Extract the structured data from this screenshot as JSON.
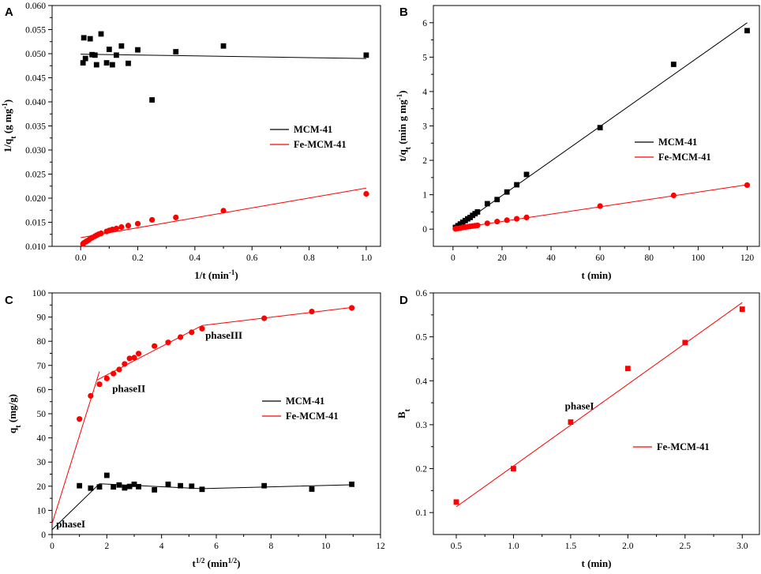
{
  "chart_data": [
    {
      "panel": "A",
      "type": "scatter",
      "xlabel": "1/t (min",
      "xlabel_sup": "-1",
      "xlabel_end": ")",
      "ylabel": "1/q",
      "ylabel_sub": "t",
      "ylabel_unit": " (g mg",
      "ylabel_sup": "-1",
      "ylabel_end": ")",
      "xlim": [
        -0.1,
        1.05
      ],
      "ylim": [
        0.01,
        0.06
      ],
      "xticks": [
        0.0,
        0.2,
        0.4,
        0.6,
        0.8,
        1.0
      ],
      "xtick_labels": [
        "0.0",
        "0.2",
        "0.4",
        "0.6",
        "0.8",
        "1.0"
      ],
      "yticks": [
        0.01,
        0.015,
        0.02,
        0.025,
        0.03,
        0.035,
        0.04,
        0.045,
        0.05,
        0.055,
        0.06
      ],
      "ytick_labels": [
        "0.010",
        "0.015",
        "0.020",
        "0.025",
        "0.030",
        "0.035",
        "0.040",
        "0.045",
        "0.050",
        "0.055",
        "0.060"
      ],
      "legend_position": "right-middle",
      "series": [
        {
          "name": "MCM-41",
          "color": "#000000",
          "marker": "square",
          "points": [
            [
              0.0083,
              0.0481
            ],
            [
              0.0111,
              0.0533
            ],
            [
              0.0167,
              0.049
            ],
            [
              0.0333,
              0.0531
            ],
            [
              0.04,
              0.0498
            ],
            [
              0.05,
              0.0497
            ],
            [
              0.0556,
              0.0477
            ],
            [
              0.0714,
              0.0541
            ],
            [
              0.0909,
              0.0481
            ],
            [
              0.1,
              0.0509
            ],
            [
              0.1111,
              0.0477
            ],
            [
              0.125,
              0.0497
            ],
            [
              0.1429,
              0.0516
            ],
            [
              0.1667,
              0.048
            ],
            [
              0.2,
              0.0508
            ],
            [
              0.25,
              0.0404
            ],
            [
              0.3333,
              0.0504
            ],
            [
              0.5,
              0.0516
            ],
            [
              1.0,
              0.0497
            ]
          ],
          "fit": [
            [
              0.0,
              0.0499
            ],
            [
              1.0,
              0.049
            ]
          ]
        },
        {
          "name": "Fe-MCM-41",
          "color": "#ff0000",
          "marker": "circle",
          "points": [
            [
              0.0083,
              0.0105
            ],
            [
              0.0111,
              0.0107
            ],
            [
              0.0167,
              0.0109
            ],
            [
              0.0222,
              0.0111
            ],
            [
              0.0278,
              0.0113
            ],
            [
              0.0333,
              0.0116
            ],
            [
              0.04,
              0.0118
            ],
            [
              0.05,
              0.0121
            ],
            [
              0.0556,
              0.0123
            ],
            [
              0.0625,
              0.0125
            ],
            [
              0.0714,
              0.0127
            ],
            [
              0.0909,
              0.0131
            ],
            [
              0.1,
              0.0133
            ],
            [
              0.1111,
              0.0135
            ],
            [
              0.125,
              0.0137
            ],
            [
              0.1429,
              0.014
            ],
            [
              0.1667,
              0.0143
            ],
            [
              0.2,
              0.0147
            ],
            [
              0.25,
              0.0155
            ],
            [
              0.3333,
              0.016
            ],
            [
              0.5,
              0.0174
            ],
            [
              1.0,
              0.0209
            ]
          ],
          "fit": [
            [
              0.0,
              0.0118
            ],
            [
              1.0,
              0.0221
            ]
          ]
        }
      ]
    },
    {
      "panel": "B",
      "type": "scatter",
      "xlabel": "t (min)",
      "ylabel": "t/q",
      "ylabel_sub": "t",
      "ylabel_unit": " (min g mg",
      "ylabel_sup": "-1",
      "ylabel_end": ")",
      "xlim": [
        -8,
        125
      ],
      "ylim": [
        -0.5,
        6.5
      ],
      "xticks": [
        0,
        20,
        40,
        60,
        80,
        100,
        120
      ],
      "xtick_labels": [
        "0",
        "20",
        "40",
        "60",
        "80",
        "100",
        "120"
      ],
      "yticks": [
        0,
        1,
        2,
        3,
        4,
        5,
        6
      ],
      "ytick_labels": [
        "0",
        "1",
        "2",
        "3",
        "4",
        "5",
        "6"
      ],
      "legend_position": "right-middle",
      "series": [
        {
          "name": "MCM-41",
          "color": "#000000",
          "marker": "square",
          "points": [
            [
              1,
              0.05
            ],
            [
              2,
              0.1
            ],
            [
              3,
              0.15
            ],
            [
              4,
              0.2
            ],
            [
              5,
              0.25
            ],
            [
              6,
              0.3
            ],
            [
              7,
              0.34
            ],
            [
              8,
              0.4
            ],
            [
              9,
              0.45
            ],
            [
              10,
              0.5
            ],
            [
              14,
              0.74
            ],
            [
              18,
              0.86
            ],
            [
              22,
              1.08
            ],
            [
              26,
              1.29
            ],
            [
              30,
              1.59
            ],
            [
              60,
              2.95
            ],
            [
              90,
              4.79
            ],
            [
              120,
              5.77
            ]
          ],
          "fit": [
            [
              1,
              0.02
            ],
            [
              120,
              6.0
            ]
          ]
        },
        {
          "name": "Fe-MCM-41",
          "color": "#ff0000",
          "marker": "circle",
          "points": [
            [
              1,
              0.01
            ],
            [
              2,
              0.02
            ],
            [
              3,
              0.03
            ],
            [
              4,
              0.05
            ],
            [
              5,
              0.06
            ],
            [
              6,
              0.07
            ],
            [
              7,
              0.08
            ],
            [
              8,
              0.09
            ],
            [
              9,
              0.1
            ],
            [
              10,
              0.11
            ],
            [
              14,
              0.17
            ],
            [
              18,
              0.22
            ],
            [
              22,
              0.26
            ],
            [
              26,
              0.3
            ],
            [
              30,
              0.34
            ],
            [
              60,
              0.67
            ],
            [
              90,
              0.98
            ],
            [
              120,
              1.28
            ]
          ],
          "fit": [
            [
              1,
              0.02
            ],
            [
              120,
              1.29
            ]
          ]
        }
      ]
    },
    {
      "panel": "C",
      "type": "scatter",
      "xlabel": "t",
      "xlabel_sup": "1/2",
      "xlabel_unit": " (min",
      "xlabel_unit_sup": "1/2",
      "xlabel_end": ")",
      "ylabel": "q",
      "ylabel_sub": "t",
      "ylabel_unit": " (mg/g)",
      "xlim": [
        0,
        12
      ],
      "ylim": [
        0,
        100
      ],
      "xticks": [
        0,
        2,
        4,
        6,
        8,
        10,
        12
      ],
      "xtick_labels": [
        "0",
        "2",
        "4",
        "6",
        "8",
        "10",
        "12"
      ],
      "yticks": [
        0,
        10,
        20,
        30,
        40,
        50,
        60,
        70,
        80,
        90,
        100
      ],
      "ytick_labels": [
        "0",
        "10",
        "20",
        "30",
        "40",
        "50",
        "60",
        "70",
        "80",
        "90",
        "100"
      ],
      "legend_position": "right-middle",
      "annotations": [
        {
          "text": "phaseI",
          "x": 0.15,
          "y": 3
        },
        {
          "text": "phaseII",
          "x": 2.2,
          "y": 59
        },
        {
          "text": "phaseIII",
          "x": 5.6,
          "y": 81
        }
      ],
      "series": [
        {
          "name": "MCM-41",
          "color": "#000000",
          "marker": "square",
          "points": [
            [
              1.0,
              20.2
            ],
            [
              1.41,
              19.2
            ],
            [
              1.73,
              19.7
            ],
            [
              2.0,
              24.5
            ],
            [
              2.24,
              19.7
            ],
            [
              2.45,
              20.5
            ],
            [
              2.65,
              19.3
            ],
            [
              2.83,
              19.9
            ],
            [
              3.0,
              20.8
            ],
            [
              3.16,
              19.8
            ],
            [
              3.74,
              18.5
            ],
            [
              4.24,
              20.8
            ],
            [
              4.69,
              20.2
            ],
            [
              5.1,
              20.0
            ],
            [
              5.48,
              18.7
            ],
            [
              7.75,
              20.2
            ],
            [
              9.49,
              18.8
            ],
            [
              10.95,
              20.8
            ]
          ],
          "fit_segments": [
            [
              [
                0,
                2.0
              ],
              [
                1.73,
                21.0
              ]
            ],
            [
              [
                1.73,
                21.0
              ],
              [
                5.48,
                19.0
              ],
              [
                10.95,
                20.6
              ]
            ]
          ]
        },
        {
          "name": "Fe-MCM-41",
          "color": "#ff0000",
          "marker": "circle",
          "points": [
            [
              1.0,
              47.8
            ],
            [
              1.41,
              57.4
            ],
            [
              1.73,
              62.2
            ],
            [
              2.0,
              64.6
            ],
            [
              2.24,
              66.6
            ],
            [
              2.45,
              68.3
            ],
            [
              2.65,
              70.6
            ],
            [
              2.83,
              72.9
            ],
            [
              3.0,
              73.2
            ],
            [
              3.16,
              74.9
            ],
            [
              3.74,
              78.0
            ],
            [
              4.24,
              79.5
            ],
            [
              4.69,
              81.7
            ],
            [
              5.1,
              83.7
            ],
            [
              5.48,
              85.2
            ],
            [
              7.75,
              89.5
            ],
            [
              9.49,
              92.3
            ],
            [
              10.95,
              93.8
            ]
          ],
          "fit_segments": [
            [
              [
                0,
                4.5
              ],
              [
                1.73,
                67.5
              ]
            ],
            [
              [
                1.65,
                64.0
              ],
              [
                5.48,
                86.5
              ]
            ],
            [
              [
                5.48,
                86.5
              ],
              [
                10.95,
                94.0
              ]
            ]
          ]
        }
      ]
    },
    {
      "panel": "D",
      "type": "scatter",
      "xlabel": "t (min)",
      "ylabel": "B",
      "ylabel_sub": "t",
      "xlim": [
        0.3,
        3.15
      ],
      "ylim": [
        0.05,
        0.6
      ],
      "xticks": [
        0.5,
        1.0,
        1.5,
        2.0,
        2.5,
        3.0
      ],
      "xtick_labels": [
        "0.5",
        "1.0",
        "1.5",
        "2.0",
        "2.5",
        "3.0"
      ],
      "yticks": [
        0.1,
        0.2,
        0.3,
        0.4,
        0.5,
        0.6
      ],
      "ytick_labels": [
        "0.1",
        "0.2",
        "0.3",
        "0.4",
        "0.5",
        "0.6"
      ],
      "legend_position": "right-middle",
      "annotations": [
        {
          "text": "phaseI",
          "x": 1.45,
          "y": 0.335
        }
      ],
      "series": [
        {
          "name": "Fe-MCM-41",
          "color": "#ff0000",
          "marker": "square",
          "points": [
            [
              0.5,
              0.124
            ],
            [
              1.0,
              0.2
            ],
            [
              1.5,
              0.306
            ],
            [
              2.0,
              0.428
            ],
            [
              2.5,
              0.487
            ],
            [
              3.0,
              0.563
            ]
          ],
          "fit": [
            [
              0.5,
              0.113
            ],
            [
              3.0,
              0.578
            ]
          ]
        }
      ]
    }
  ]
}
